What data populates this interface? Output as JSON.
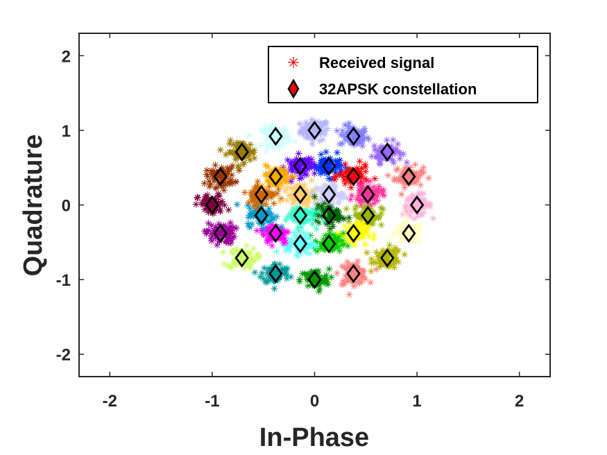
{
  "chart_data": {
    "type": "scatter",
    "title": "",
    "xlabel": "In-Phase",
    "ylabel": "Quadrature",
    "xlim": [
      -2.3,
      2.3
    ],
    "ylim": [
      -2.3,
      2.3
    ],
    "xticks": [
      -2,
      -1,
      0,
      1,
      2
    ],
    "yticks": [
      -2,
      -1,
      0,
      1,
      2
    ],
    "xtick_labels": [
      "-2",
      "-1",
      "0",
      "1",
      "2"
    ],
    "ytick_labels": [
      "-2",
      "-1",
      "0",
      "1",
      "2"
    ],
    "grid": false,
    "legend_position": "top-right",
    "legend": [
      {
        "label": "Received signal",
        "marker": "asterisk",
        "color": "#ff0000"
      },
      {
        "label": "32APSK constellation",
        "marker": "diamond",
        "color": "#ff0000",
        "edge": "#000000"
      }
    ],
    "series": [
      {
        "name": "Received signal",
        "marker": "asterisk",
        "description": "noisy received samples, colored by transmitted symbol",
        "clusters": [
          {
            "x": 0.0,
            "y": 1.0,
            "color": "#b3b3ff"
          },
          {
            "x": 0.38,
            "y": 0.92,
            "color": "#8080ff"
          },
          {
            "x": 0.71,
            "y": 0.71,
            "color": "#9966ff"
          },
          {
            "x": 0.92,
            "y": 0.38,
            "color": "#ff8080"
          },
          {
            "x": 1.0,
            "y": 0.0,
            "color": "#ffb3d9"
          },
          {
            "x": 0.92,
            "y": -0.38,
            "color": "#ffffbf"
          },
          {
            "x": 0.71,
            "y": -0.71,
            "color": "#b3b300"
          },
          {
            "x": 0.38,
            "y": -0.92,
            "color": "#ff8080"
          },
          {
            "x": 0.0,
            "y": -1.0,
            "color": "#009900"
          },
          {
            "x": -0.38,
            "y": -0.92,
            "color": "#009999"
          },
          {
            "x": -0.71,
            "y": -0.71,
            "color": "#ccff66"
          },
          {
            "x": -0.92,
            "y": -0.38,
            "color": "#990099"
          },
          {
            "x": -1.0,
            "y": 0.0,
            "color": "#800040"
          },
          {
            "x": -0.92,
            "y": 0.38,
            "color": "#993300"
          },
          {
            "x": -0.71,
            "y": 0.71,
            "color": "#997a00"
          },
          {
            "x": -0.38,
            "y": 0.92,
            "color": "#ccffff"
          },
          {
            "x": -0.14,
            "y": 0.52,
            "color": "#6600ff"
          },
          {
            "x": 0.14,
            "y": 0.52,
            "color": "#0033ff"
          },
          {
            "x": 0.38,
            "y": 0.38,
            "color": "#ff0000"
          },
          {
            "x": 0.52,
            "y": 0.14,
            "color": "#ff3399"
          },
          {
            "x": 0.52,
            "y": -0.14,
            "color": "#99b300"
          },
          {
            "x": 0.38,
            "y": -0.38,
            "color": "#ffff00"
          },
          {
            "x": 0.14,
            "y": -0.52,
            "color": "#00cc00"
          },
          {
            "x": -0.14,
            "y": -0.52,
            "color": "#66ffff"
          },
          {
            "x": -0.38,
            "y": -0.38,
            "color": "#ff00ff"
          },
          {
            "x": -0.52,
            "y": -0.14,
            "color": "#0099cc"
          },
          {
            "x": -0.52,
            "y": 0.14,
            "color": "#cc6600"
          },
          {
            "x": -0.38,
            "y": 0.38,
            "color": "#ffaa00"
          },
          {
            "x": -0.14,
            "y": 0.14,
            "color": "#ffcc66"
          },
          {
            "x": 0.14,
            "y": 0.14,
            "color": "#ccccff"
          },
          {
            "x": 0.14,
            "y": -0.14,
            "color": "#006600"
          },
          {
            "x": -0.14,
            "y": -0.14,
            "color": "#33ffcc"
          }
        ],
        "spread": 0.07
      },
      {
        "name": "32APSK constellation",
        "marker": "diamond",
        "x": [
          0.0,
          0.38,
          0.71,
          0.92,
          1.0,
          0.92,
          0.71,
          0.38,
          0.0,
          -0.38,
          -0.71,
          -0.92,
          -1.0,
          -0.92,
          -0.71,
          -0.38,
          -0.14,
          0.14,
          0.38,
          0.52,
          0.52,
          0.38,
          0.14,
          -0.14,
          -0.38,
          -0.52,
          -0.52,
          -0.38,
          -0.14,
          0.14,
          0.14,
          -0.14
        ],
        "y": [
          1.0,
          0.92,
          0.71,
          0.38,
          0.0,
          -0.38,
          -0.71,
          -0.92,
          -1.0,
          -0.92,
          -0.71,
          -0.38,
          0.0,
          0.38,
          0.71,
          0.92,
          0.52,
          0.52,
          0.38,
          0.14,
          -0.14,
          -0.38,
          -0.52,
          -0.52,
          -0.38,
          -0.14,
          0.14,
          0.38,
          0.14,
          0.14,
          -0.14,
          -0.14
        ]
      }
    ]
  }
}
